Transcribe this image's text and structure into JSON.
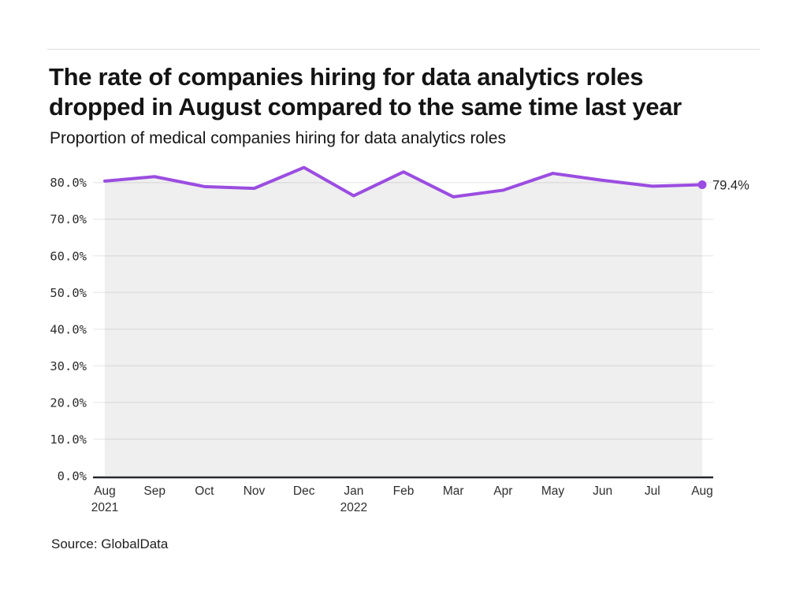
{
  "header": {
    "title_lines": [
      "The rate of companies hiring for data analytics roles",
      "dropped in August compared to the same time last year"
    ],
    "subtitle": "Proportion of medical companies hiring for data analytics roles"
  },
  "footer": {
    "source": "Source: GlobalData"
  },
  "chart_data": {
    "type": "area",
    "title": "The rate of companies hiring for data analytics roles dropped in August compared to the same time last year",
    "subtitle": "Proportion of medical companies hiring for data analytics roles",
    "source": "Source: GlobalData",
    "categories": [
      "Aug 2021",
      "Sep",
      "Oct",
      "Nov",
      "Dec",
      "Jan 2022",
      "Feb",
      "Mar",
      "Apr",
      "May",
      "Jun",
      "Jul",
      "Aug"
    ],
    "values": [
      80.4,
      81.6,
      78.9,
      78.4,
      84.1,
      76.4,
      82.9,
      76.1,
      77.9,
      82.5,
      80.6,
      79.0,
      79.4
    ],
    "x_ticks": [
      {
        "month": "Aug",
        "year": "2021"
      },
      {
        "month": "Sep"
      },
      {
        "month": "Oct"
      },
      {
        "month": "Nov"
      },
      {
        "month": "Dec"
      },
      {
        "month": "Jan",
        "year": "2022"
      },
      {
        "month": "Feb"
      },
      {
        "month": "Mar"
      },
      {
        "month": "Apr"
      },
      {
        "month": "May"
      },
      {
        "month": "Jun"
      },
      {
        "month": "Jul"
      },
      {
        "month": "Aug"
      }
    ],
    "y_tick_labels": [
      "0.0%",
      "10.0%",
      "20.0%",
      "30.0%",
      "40.0%",
      "50.0%",
      "60.0%",
      "70.0%",
      "80.0%"
    ],
    "ylim": [
      0,
      80
    ],
    "grid": true,
    "legend": false,
    "end_label": "79.4%",
    "colors": {
      "line": "#9b4de0",
      "fill": "#efefef",
      "axis": "#24282e",
      "grid": "rgba(0,0,0,0.07)",
      "tick_text": "#2e2e2e",
      "label_text": "#242424"
    }
  }
}
